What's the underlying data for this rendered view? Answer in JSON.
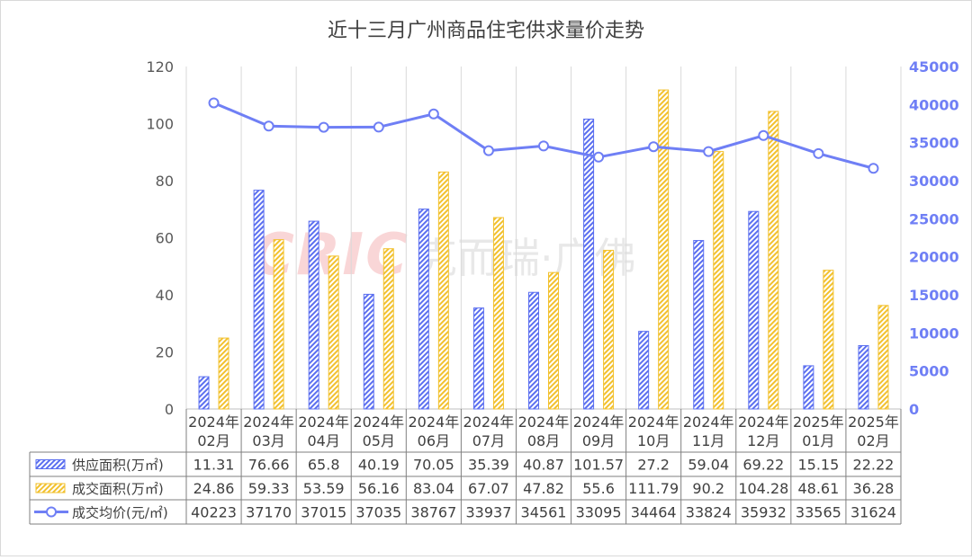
{
  "chart_data": {
    "type": "bar",
    "title": "近十三月广州商品住宅供求量价走势",
    "categories": [
      [
        "2024年",
        "02月"
      ],
      [
        "2024年",
        "03月"
      ],
      [
        "2024年",
        "04月"
      ],
      [
        "2024年",
        "05月"
      ],
      [
        "2024年",
        "06月"
      ],
      [
        "2024年",
        "07月"
      ],
      [
        "2024年",
        "08月"
      ],
      [
        "2024年",
        "09月"
      ],
      [
        "2024年",
        "10月"
      ],
      [
        "2024年",
        "11月"
      ],
      [
        "2024年",
        "12月"
      ],
      [
        "2025年",
        "01月"
      ],
      [
        "2025年",
        "02月"
      ]
    ],
    "left_axis": {
      "min": 0,
      "max": 120,
      "ticks": [
        "0",
        "20",
        "40",
        "60",
        "80",
        "100",
        "120"
      ]
    },
    "right_axis": {
      "min": 0,
      "max": 45000,
      "ticks": [
        "0",
        "5000",
        "10000",
        "15000",
        "20000",
        "25000",
        "30000",
        "35000",
        "40000",
        "45000"
      ]
    },
    "series": [
      {
        "name": "供应面积(万㎡)",
        "type": "bar",
        "axis": "left",
        "color": "#5b6ff0",
        "values": [
          11.31,
          76.66,
          65.8,
          40.19,
          70.05,
          35.39,
          40.87,
          101.57,
          27.2,
          59.04,
          69.22,
          15.15,
          22.22
        ],
        "labels": [
          "11.31",
          "76.66",
          "65.8",
          "40.19",
          "70.05",
          "35.39",
          "40.87",
          "101.57",
          "27.2",
          "59.04",
          "69.22",
          "15.15",
          "22.22"
        ]
      },
      {
        "name": "成交面积(万㎡)",
        "type": "bar",
        "axis": "left",
        "color": "#f2c12e",
        "values": [
          24.86,
          59.33,
          53.59,
          56.16,
          83.04,
          67.07,
          47.82,
          55.6,
          111.79,
          90.2,
          104.28,
          48.61,
          36.28
        ],
        "labels": [
          "24.86",
          "59.33",
          "53.59",
          "56.16",
          "83.04",
          "67.07",
          "47.82",
          "55.6",
          "111.79",
          "90.2",
          "104.28",
          "48.61",
          "36.28"
        ]
      },
      {
        "name": "成交均价(元/㎡)",
        "type": "line",
        "axis": "right",
        "color": "#6f7ff5",
        "values": [
          40223,
          37170,
          37015,
          37035,
          38767,
          33937,
          34561,
          33095,
          34464,
          33824,
          35932,
          33565,
          31624
        ],
        "labels": [
          "40223",
          "37170",
          "37015",
          "37035",
          "38767",
          "33937",
          "34561",
          "33095",
          "34464",
          "33824",
          "35932",
          "33565",
          "31624"
        ]
      }
    ],
    "grid": "vertical",
    "legend": "data-table",
    "watermark": "CRIC 克而瑞·广佛"
  }
}
